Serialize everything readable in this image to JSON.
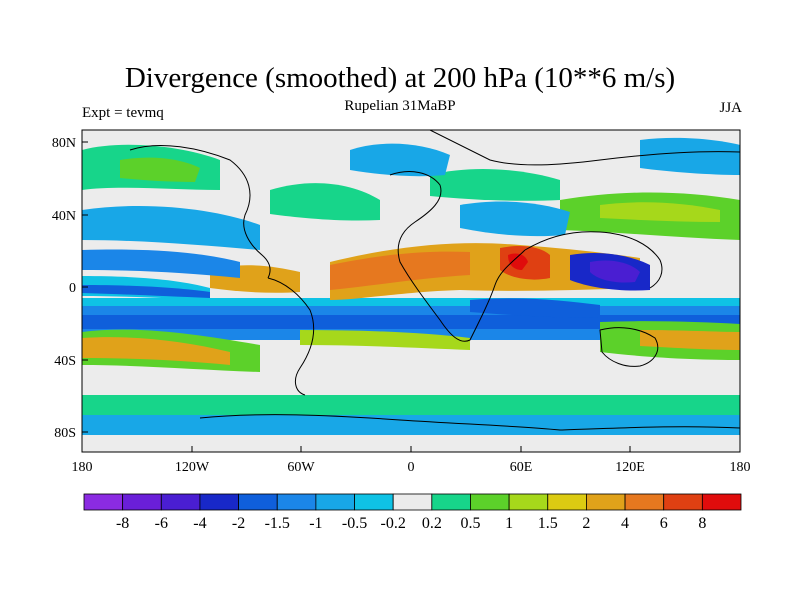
{
  "title": "Divergence (smoothed) at 200 hPa (10**6 m/s)",
  "subtitle": "Rupelian  31MaBP",
  "left_label": "Expt = tevmq",
  "right_label": "JJA",
  "axes": {
    "lat_ticks": [
      "80N",
      "40N",
      "0",
      "40S",
      "80S"
    ],
    "lon_ticks": [
      "180",
      "120W",
      "60W",
      "0",
      "60E",
      "120E",
      "180"
    ]
  },
  "colorbar": {
    "colors": [
      "#8b2be2",
      "#6a1fd9",
      "#4a1ed2",
      "#1828c8",
      "#0f5fdb",
      "#1b86e8",
      "#18a7e7",
      "#0fc2e5",
      "#ececec",
      "#17d58a",
      "#5cd12a",
      "#a6d81b",
      "#dccb12",
      "#e0a21a",
      "#e6781f",
      "#df4012",
      "#e00c0c"
    ],
    "labels": [
      "-8",
      "-6",
      "-4",
      "-2",
      "-1.5",
      "-1",
      "-0.5",
      "-0.2",
      "0.2",
      "0.5",
      "1",
      "1.5",
      "2",
      "4",
      "6",
      "8"
    ]
  }
}
